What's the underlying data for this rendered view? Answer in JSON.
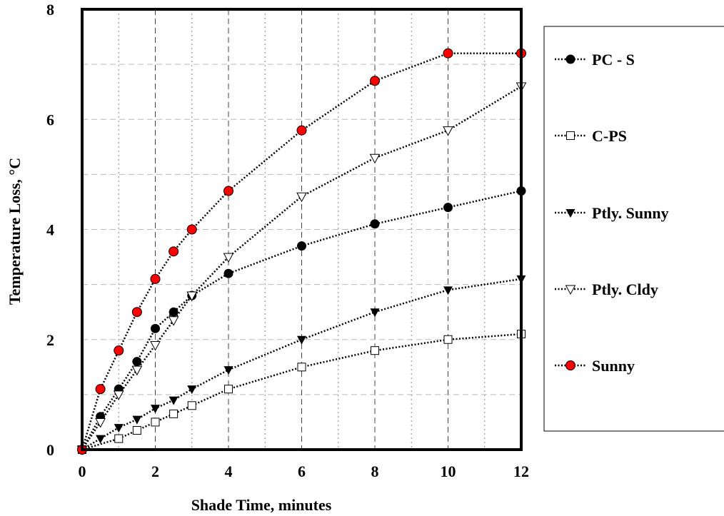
{
  "chart_data": {
    "type": "line",
    "title": "",
    "xlabel": "Shade Time, minutes",
    "ylabel": "Temperature Loss, °C",
    "xlim": [
      0,
      12
    ],
    "ylim": [
      0,
      8
    ],
    "x_ticks": [
      "0",
      "2",
      "4",
      "6",
      "8",
      "10",
      "12"
    ],
    "y_ticks": [
      "0",
      "2",
      "4",
      "6",
      "8"
    ],
    "grid": true,
    "legend_position": "right",
    "series": [
      {
        "name": "PC - S",
        "marker": "filled-circle",
        "color": "#000000",
        "points": [
          [
            0,
            0
          ],
          [
            0.5,
            0.6
          ],
          [
            1,
            1.1
          ],
          [
            1.5,
            1.6
          ],
          [
            2,
            2.2
          ],
          [
            2.5,
            2.5
          ],
          [
            3,
            2.8
          ],
          [
            4,
            3.2
          ],
          [
            6,
            3.7
          ],
          [
            8,
            4.1
          ],
          [
            10,
            4.4
          ],
          [
            12,
            4.7
          ]
        ]
      },
      {
        "name": "C-PS",
        "marker": "open-square",
        "color": "#000000",
        "points": [
          [
            0,
            0
          ],
          [
            1,
            0.2
          ],
          [
            1.5,
            0.35
          ],
          [
            2,
            0.5
          ],
          [
            2.5,
            0.65
          ],
          [
            3,
            0.8
          ],
          [
            4,
            1.1
          ],
          [
            6,
            1.5
          ],
          [
            8,
            1.8
          ],
          [
            10,
            2.0
          ],
          [
            12,
            2.1
          ]
        ]
      },
      {
        "name": "Ptly. Sunny",
        "marker": "filled-triangle-down",
        "color": "#000000",
        "points": [
          [
            0,
            0
          ],
          [
            0.5,
            0.2
          ],
          [
            1,
            0.4
          ],
          [
            1.5,
            0.55
          ],
          [
            2,
            0.75
          ],
          [
            2.5,
            0.9
          ],
          [
            3,
            1.1
          ],
          [
            4,
            1.45
          ],
          [
            6,
            2.0
          ],
          [
            8,
            2.5
          ],
          [
            10,
            2.9
          ],
          [
            12,
            3.1
          ]
        ]
      },
      {
        "name": "Ptly. Cldy",
        "marker": "open-triangle-down",
        "color": "#000000",
        "points": [
          [
            0,
            0
          ],
          [
            0.5,
            0.5
          ],
          [
            1,
            1.0
          ],
          [
            1.5,
            1.45
          ],
          [
            2,
            1.9
          ],
          [
            2.5,
            2.35
          ],
          [
            3,
            2.8
          ],
          [
            4,
            3.5
          ],
          [
            6,
            4.6
          ],
          [
            8,
            5.3
          ],
          [
            10,
            5.8
          ],
          [
            12,
            6.6
          ]
        ]
      },
      {
        "name": "Sunny",
        "marker": "red-circle",
        "color": "#ff0000",
        "points": [
          [
            0,
            0
          ],
          [
            0.5,
            1.1
          ],
          [
            1,
            1.8
          ],
          [
            1.5,
            2.5
          ],
          [
            2,
            3.1
          ],
          [
            2.5,
            3.6
          ],
          [
            3,
            4.0
          ],
          [
            4,
            4.7
          ],
          [
            6,
            5.8
          ],
          [
            8,
            6.7
          ],
          [
            10,
            7.2
          ],
          [
            12,
            7.2
          ]
        ]
      }
    ]
  }
}
